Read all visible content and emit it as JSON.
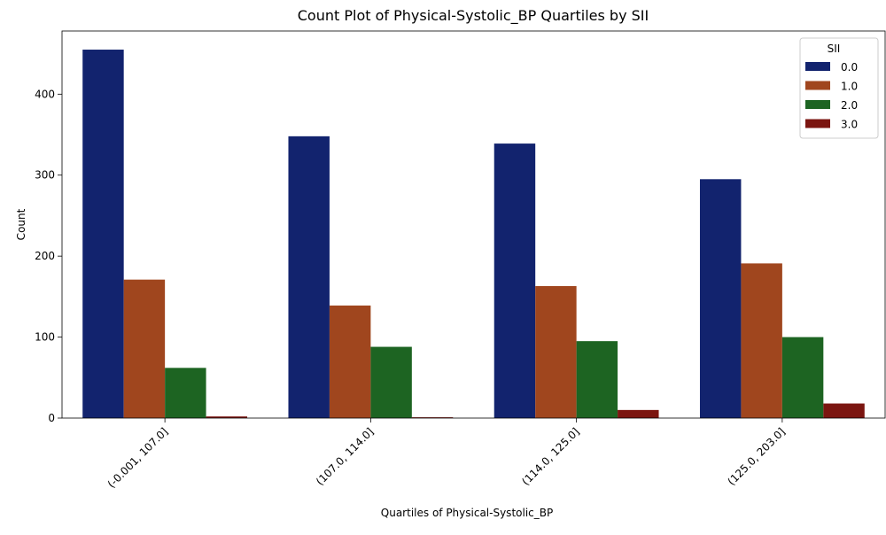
{
  "chart_data": {
    "type": "bar",
    "title": "Count Plot of Physical-Systolic_BP Quartiles by SII",
    "xlabel": "Quartiles of Physical-Systolic_BP",
    "ylabel": "Count",
    "categories": [
      "(-0.001, 107.0]",
      "(107.0, 114.0]",
      "(114.0, 125.0]",
      "(125.0, 203.0]"
    ],
    "series": [
      {
        "name": "0.0",
        "color": "#12236e",
        "values": [
          455,
          348,
          339,
          295
        ]
      },
      {
        "name": "1.0",
        "color": "#a0461e",
        "values": [
          171,
          139,
          163,
          191
        ]
      },
      {
        "name": "2.0",
        "color": "#1d6422",
        "values": [
          62,
          88,
          95,
          100
        ]
      },
      {
        "name": "3.0",
        "color": "#7b1510",
        "values": [
          2,
          1,
          10,
          18
        ]
      }
    ],
    "ylim": [
      0,
      478
    ],
    "yticks": [
      0,
      100,
      200,
      300,
      400
    ],
    "legend": {
      "title": "SII",
      "position": "top-right"
    },
    "grid": false
  }
}
